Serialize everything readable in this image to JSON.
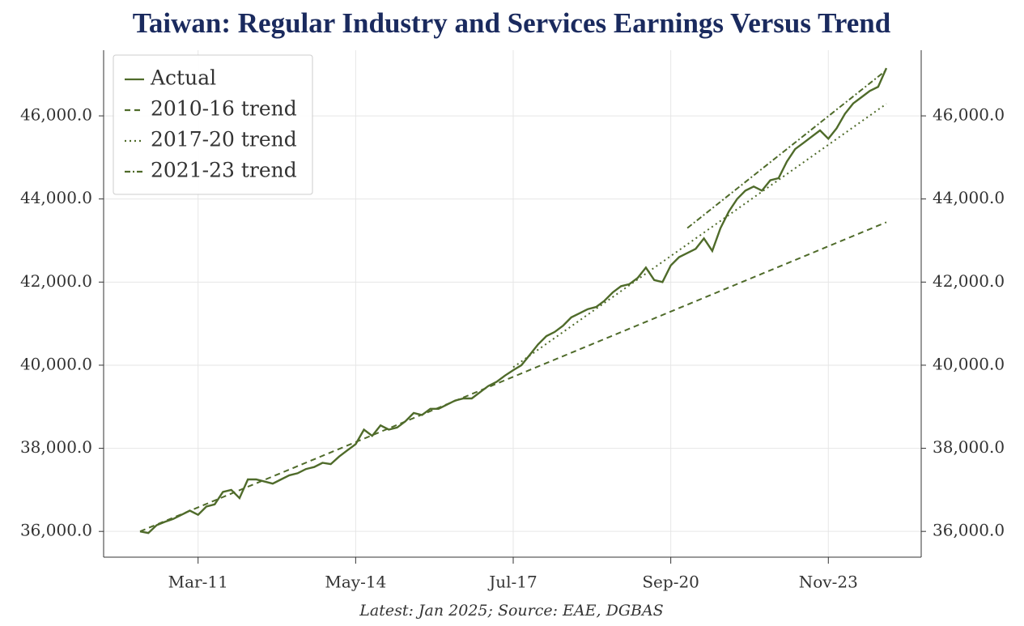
{
  "chart_data": {
    "type": "line",
    "title": "Taiwan: Regular Industry and Services Earnings Versus Trend",
    "footnote": "Latest: Jan 2025; Source: EAE, DGBAS",
    "categories": [
      "Jan-10",
      "Mar-10",
      "May-10",
      "Jul-10",
      "Sep-10",
      "Nov-10",
      "Jan-11",
      "Mar-11",
      "May-11",
      "Jul-11",
      "Sep-11",
      "Nov-11",
      "Jan-12",
      "Mar-12",
      "May-12",
      "Jul-12",
      "Sep-12",
      "Nov-12",
      "Jan-13",
      "Mar-13",
      "May-13",
      "Jul-13",
      "Sep-13",
      "Nov-13",
      "Jan-14",
      "Mar-14",
      "May-14",
      "Jul-14",
      "Sep-14",
      "Nov-14",
      "Jan-15",
      "Mar-15",
      "May-15",
      "Jul-15",
      "Sep-15",
      "Nov-15",
      "Jan-16",
      "Mar-16",
      "May-16",
      "Jul-16",
      "Sep-16",
      "Nov-16",
      "Jan-17",
      "Mar-17",
      "May-17",
      "Jul-17",
      "Sep-17",
      "Nov-17",
      "Jan-18",
      "Mar-18",
      "May-18",
      "Jul-18",
      "Sep-18",
      "Nov-18",
      "Jan-19",
      "Mar-19",
      "May-19",
      "Jul-19",
      "Sep-19",
      "Nov-19",
      "Jan-20",
      "Mar-20",
      "May-20",
      "Jul-20",
      "Sep-20",
      "Nov-20",
      "Jan-21",
      "Mar-21",
      "May-21",
      "Jul-21",
      "Sep-21",
      "Nov-21",
      "Jan-22",
      "Mar-22",
      "May-22",
      "Jul-22",
      "Sep-22",
      "Nov-22",
      "Jan-23",
      "Mar-23",
      "May-23",
      "Jul-23",
      "Sep-23",
      "Nov-23",
      "Jan-24",
      "Mar-24",
      "May-24",
      "Jul-24",
      "Sep-24",
      "Nov-24",
      "Jan-25"
    ],
    "series": [
      {
        "name": "Actual",
        "color": "#4f6b2a",
        "style": "solid",
        "values": [
          36000,
          35960,
          36150,
          36230,
          36300,
          36400,
          36500,
          36400,
          36600,
          36650,
          36950,
          37000,
          36800,
          37250,
          37250,
          37200,
          37150,
          37250,
          37350,
          37400,
          37500,
          37550,
          37650,
          37620,
          37800,
          37950,
          38100,
          38450,
          38300,
          38550,
          38450,
          38500,
          38650,
          38850,
          38800,
          38950,
          38950,
          39050,
          39150,
          39200,
          39200,
          39350,
          39500,
          39600,
          39750,
          39880,
          40000,
          40250,
          40500,
          40700,
          40800,
          40950,
          41150,
          41250,
          41350,
          41400,
          41550,
          41750,
          41900,
          41950,
          42100,
          42350,
          42050,
          42000,
          42400,
          42600,
          42700,
          42800,
          43050,
          42750,
          43300,
          43700,
          44000,
          44200,
          44300,
          44200,
          44450,
          44500,
          44900,
          45200,
          45350,
          45500,
          45650,
          45450,
          45700,
          46050,
          46300,
          46450,
          46600,
          46700,
          47150
        ]
      },
      {
        "name": "2010-16 trend",
        "color": "#4f6b2a",
        "style": "dashed",
        "x": [
          "Jan-10",
          "Jan-25"
        ],
        "values": [
          36000,
          43440
        ]
      },
      {
        "name": "2017-20 trend",
        "color": "#4f6b2a",
        "style": "dotted",
        "x": [
          "Jul-17",
          "Jan-25"
        ],
        "values": [
          39950,
          46290
        ]
      },
      {
        "name": "2021-23 trend",
        "color": "#4f6b2a",
        "style": "dashdot",
        "x": [
          "Jan-21",
          "Jan-25"
        ],
        "values": [
          43300,
          47100
        ]
      }
    ],
    "xticks": [
      "Mar-11",
      "May-14",
      "Jul-17",
      "Sep-20",
      "Nov-23"
    ],
    "ylim": [
      35380,
      47580
    ],
    "yticks": [
      {
        "value": 36000,
        "label": "36,000.0"
      },
      {
        "value": 38000,
        "label": "38,000.0"
      },
      {
        "value": 40000,
        "label": "40,000.0"
      },
      {
        "value": 42000,
        "label": "42,000.0"
      },
      {
        "value": 44000,
        "label": "44,000.0"
      },
      {
        "value": 46000,
        "label": "46,000.0"
      }
    ],
    "grid": true,
    "legend": "upper left"
  }
}
